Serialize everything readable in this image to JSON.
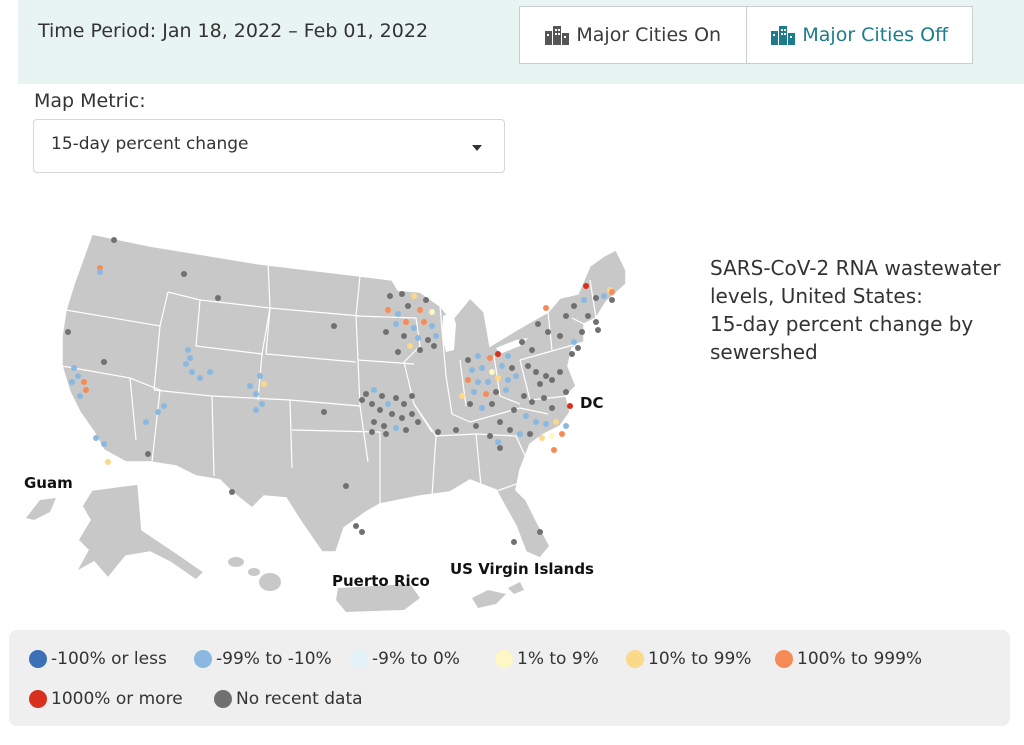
{
  "header": {
    "time_period": "Time Period: Jan 18, 2022 – Feb 01, 2022",
    "toggle_on_label": "Major Cities On",
    "toggle_off_label": "Major Cities Off"
  },
  "metric": {
    "label": "Map Metric:",
    "selected": "15-day percent change"
  },
  "map": {
    "title_lines": [
      "SARS-CoV-2 RNA wastewater",
      "levels, United States:",
      "15-day percent change by",
      "sewershed"
    ],
    "territories": {
      "guam": "Guam",
      "puerto_rico": "Puerto Rico",
      "usvi": "US Virgin Islands",
      "dc": "DC"
    }
  },
  "legend": {
    "items": [
      {
        "label": "-100% or less",
        "color": "#3b6fb6"
      },
      {
        "label": "-99% to -10%",
        "color": "#8ab8e0"
      },
      {
        "label": "-9% to 0%",
        "color": "#e3f1f8"
      },
      {
        "label": "1% to 9%",
        "color": "#fdf7c3"
      },
      {
        "label": "10% to 99%",
        "color": "#fbd98a"
      },
      {
        "label": "100% to 999%",
        "color": "#f58b57"
      },
      {
        "label": "1000% or more",
        "color": "#d7301f"
      },
      {
        "label": "No recent data",
        "color": "#707070"
      }
    ]
  },
  "colors": {
    "land": "#c8c8c8",
    "border": "#ffffff",
    "accent": "#1c7c8c"
  }
}
